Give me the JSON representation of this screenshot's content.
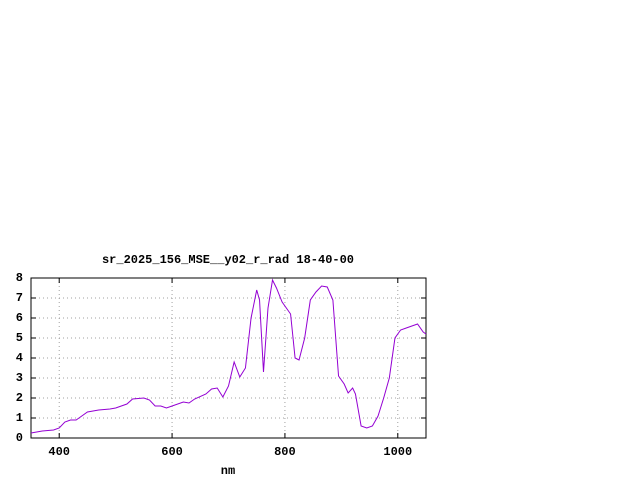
{
  "chart_data": {
    "type": "line",
    "title": "sr_2025_156_MSE__y02_r_rad 18-40-00",
    "x_label": "nm",
    "x": [
      350,
      370,
      390,
      400,
      410,
      420,
      430,
      440,
      450,
      470,
      490,
      500,
      520,
      530,
      550,
      560,
      570,
      580,
      590,
      600,
      620,
      630,
      640,
      660,
      670,
      680,
      690,
      700,
      710,
      720,
      730,
      740,
      750,
      755,
      762,
      770,
      778,
      785,
      795,
      810,
      818,
      825,
      835,
      845,
      855,
      865,
      875,
      885,
      895,
      905,
      912,
      920,
      925,
      935,
      945,
      955,
      965,
      975,
      985,
      995,
      1005,
      1015,
      1025,
      1035,
      1045,
      1050
    ],
    "series": [
      {
        "color": "#9400d3",
        "values": [
          0.25,
          0.35,
          0.4,
          0.5,
          0.8,
          0.9,
          0.9,
          1.1,
          1.3,
          1.4,
          1.45,
          1.5,
          1.7,
          1.95,
          2.0,
          1.9,
          1.6,
          1.6,
          1.5,
          1.6,
          1.8,
          1.75,
          1.95,
          2.2,
          2.45,
          2.5,
          2.05,
          2.6,
          3.8,
          3.05,
          3.5,
          6.0,
          7.4,
          6.9,
          3.3,
          6.5,
          7.9,
          7.5,
          6.8,
          6.2,
          4.0,
          3.9,
          5.0,
          6.9,
          7.3,
          7.6,
          7.55,
          6.9,
          3.1,
          2.7,
          2.25,
          2.5,
          2.2,
          0.6,
          0.5,
          0.6,
          1.1,
          2.0,
          3.0,
          5.0,
          5.4,
          5.5,
          5.6,
          5.7,
          5.3,
          5.2
        ]
      }
    ],
    "xlim": [
      350,
      1050
    ],
    "ylim": [
      0,
      8
    ],
    "xticks": [
      400,
      600,
      800,
      1000
    ],
    "yticks": [
      0,
      1,
      2,
      3,
      4,
      5,
      6,
      7,
      8
    ],
    "grid": true
  }
}
